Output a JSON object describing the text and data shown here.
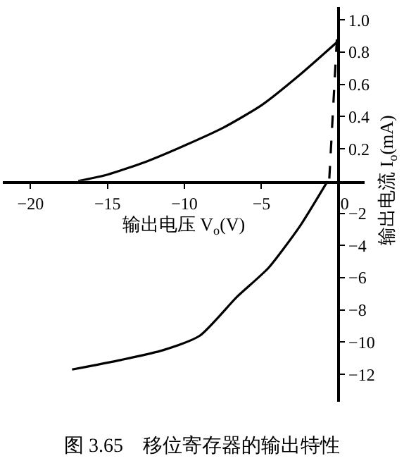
{
  "chart_data": [
    {
      "type": "line",
      "title": "图 3.65　移位寄存器的输出特性",
      "xlabel": "输出电压 V$_{o}$(V)",
      "ylabel": "输出电流 I$_{o}$(mA)",
      "xlim": [
        -21.8,
        1.7
      ],
      "xticks": [
        -20,
        -15,
        -10,
        -5,
        0
      ],
      "ylim": [
        0,
        1.08
      ],
      "yticks": [
        0.2,
        0.4,
        0.6,
        0.8,
        {
          "value": 1.0,
          "label": "1.0"
        }
      ],
      "marker": "none",
      "series": [
        {
          "color": "#000000",
          "line_style": "solid",
          "x": [
            -16.9,
            -15,
            -12.5,
            -10,
            -7.5,
            -5,
            -2.5,
            0
          ],
          "values": [
            0,
            0.04,
            0.12,
            0.22,
            0.33,
            0.47,
            0.66,
            0.87
          ]
        },
        {
          "color": "#000000",
          "line_style": "dashed",
          "x": [
            -0.1,
            -0.6
          ],
          "values": [
            0.88,
            0
          ]
        }
      ]
    },
    {
      "type": "line",
      "xlim": [
        -21.8,
        1.7
      ],
      "ylim": [
        -13.7,
        0
      ],
      "yticks": [
        -2,
        -4,
        -6,
        -8,
        -10,
        -12
      ],
      "tick_labels": "y",
      "marker": "none",
      "series": [
        {
          "color": "#000000",
          "line_style": "solid",
          "x": [
            -0.7,
            -2.5,
            -4.55,
            -6.6,
            -9.0,
            -11.4,
            -14.1,
            -17.3
          ],
          "values": [
            0,
            -2.8,
            -5.4,
            -7.2,
            -9.6,
            -10.5,
            -11.1,
            -11.7
          ]
        }
      ]
    }
  ]
}
